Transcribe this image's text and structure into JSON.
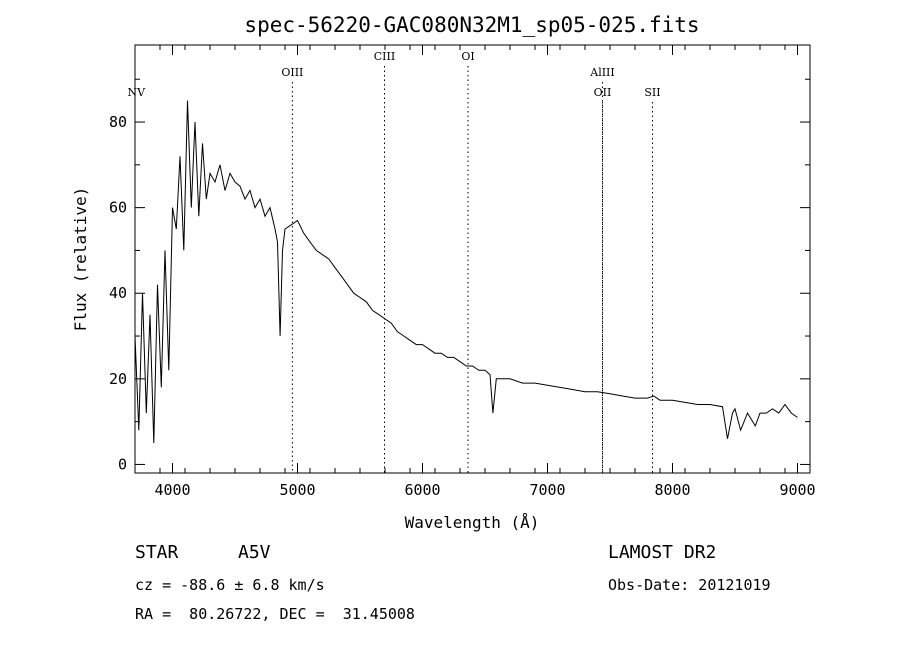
{
  "chart_data": {
    "type": "line",
    "title": "spec-56220-GAC080N32M1_sp05-025.fits",
    "xlabel": "Wavelength (Å)",
    "ylabel": "Flux (relative)",
    "xlim": [
      3700,
      9100
    ],
    "ylim": [
      -2,
      98
    ],
    "x_ticks": [
      "4000",
      "5000",
      "6000",
      "7000",
      "8000",
      "9000"
    ],
    "y_ticks": [
      "0",
      "20",
      "40",
      "60",
      "80"
    ],
    "x_tick_values": [
      4000,
      5000,
      6000,
      7000,
      8000,
      9000
    ],
    "y_tick_values": [
      0,
      20,
      40,
      60,
      80
    ],
    "grid": false,
    "series": [
      {
        "x": [
          3700,
          3730,
          3760,
          3790,
          3820,
          3850,
          3880,
          3910,
          3940,
          3970,
          4000,
          4030,
          4060,
          4090,
          4120,
          4150,
          4180,
          4210,
          4240,
          4270,
          4300,
          4340,
          4380,
          4420,
          4460,
          4500,
          4540,
          4580,
          4620,
          4660,
          4700,
          4740,
          4780,
          4820,
          4840,
          4861,
          4880,
          4900,
          4950,
          5000,
          5050,
          5100,
          5150,
          5200,
          5250,
          5300,
          5350,
          5400,
          5450,
          5500,
          5550,
          5600,
          5650,
          5700,
          5750,
          5800,
          5850,
          5900,
          5950,
          6000,
          6050,
          6100,
          6150,
          6200,
          6250,
          6300,
          6350,
          6400,
          6450,
          6500,
          6540,
          6563,
          6590,
          6650,
          6700,
          6800,
          6900,
          7000,
          7100,
          7200,
          7300,
          7400,
          7500,
          7600,
          7700,
          7800,
          7850,
          7900,
          8000,
          8100,
          8200,
          8300,
          8400,
          8440,
          8480,
          8500,
          8545,
          8600,
          8662,
          8700,
          8750,
          8800,
          8850,
          8900,
          8950,
          9000
        ],
        "values": [
          30,
          8,
          40,
          12,
          35,
          5,
          42,
          18,
          50,
          22,
          60,
          55,
          72,
          50,
          85,
          60,
          80,
          58,
          75,
          62,
          68,
          66,
          70,
          64,
          68,
          66,
          65,
          62,
          64,
          60,
          62,
          58,
          60,
          55,
          52,
          30,
          50,
          55,
          56,
          57,
          54,
          52,
          50,
          49,
          48,
          46,
          44,
          42,
          40,
          39,
          38,
          36,
          35,
          34,
          33,
          31,
          30,
          29,
          28,
          28,
          27,
          26,
          26,
          25,
          25,
          24,
          23,
          23,
          22,
          22,
          21,
          12,
          20,
          20,
          20,
          19,
          19,
          18.5,
          18,
          17.5,
          17,
          17,
          16.5,
          16,
          15.5,
          15.5,
          16,
          15,
          15,
          14.5,
          14,
          14,
          13.5,
          6,
          12,
          13,
          8,
          12,
          9,
          12,
          12,
          13,
          12,
          14,
          12,
          11
        ]
      }
    ],
    "lines": [
      {
        "label": "NV",
        "x": 3710,
        "tier": 1,
        "dotted": false
      },
      {
        "label": "OIII",
        "x": 4959,
        "tier": 0,
        "dotted": true
      },
      {
        "label": "CIII",
        "x": 5696,
        "tier": 2,
        "dotted": true
      },
      {
        "label": "OI",
        "x": 6364,
        "tier": 2,
        "dotted": true
      },
      {
        "label": "AlIII",
        "x": 7440,
        "tier": 0,
        "dotted": true
      },
      {
        "label": "OII",
        "x": 7440,
        "tier": 1,
        "dotted": true
      },
      {
        "label": "SII",
        "x": 7840,
        "tier": 1,
        "dotted": true
      }
    ]
  },
  "info": {
    "class_label": "STAR",
    "subclass": "A5V",
    "survey": "LAMOST DR2",
    "cz": "cz = -88.6 ± 6.8 km/s",
    "obs_date": "Obs-Date: 20121019",
    "radec": "RA =  80.26722, DEC =  31.45008"
  }
}
